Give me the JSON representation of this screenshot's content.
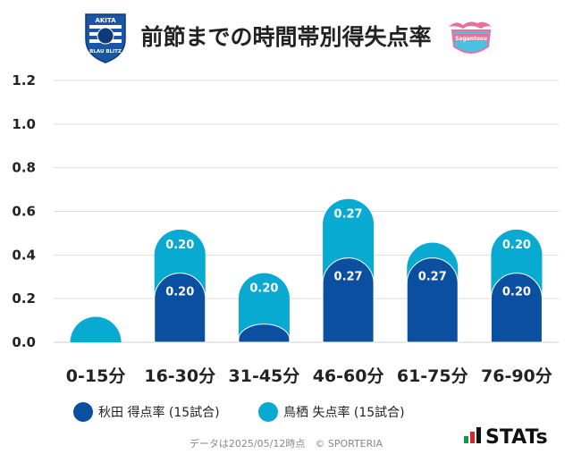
{
  "chart_data": {
    "type": "bar",
    "title": "前節までの時間帯別得失点率",
    "categories": [
      "0-15分",
      "16-30分",
      "31-45分",
      "46-60分",
      "61-75分",
      "76-90分"
    ],
    "series": [
      {
        "name": "秋田 得点率 (15試合)",
        "color": "#0b4fa0",
        "values": [
          0.0,
          0.2,
          0.0,
          0.27,
          0.27,
          0.2
        ],
        "labels": [
          "",
          "0.20",
          "",
          "0.27",
          "0.27",
          "0.20"
        ]
      },
      {
        "name": "鳥栖 失点率 (15試合)",
        "color": "#08aad1",
        "values": [
          0.0,
          0.2,
          0.2,
          0.27,
          0.07,
          0.2
        ],
        "labels": [
          "",
          "0.20",
          "0.20",
          "0.27",
          "",
          "0.20"
        ]
      }
    ],
    "stacked": true,
    "ylim": [
      0,
      1.2
    ],
    "yticks": [
      "1.2",
      "1.0",
      "0.8",
      "0.6",
      "0.4",
      "0.2",
      "0.0"
    ],
    "grid": true,
    "legend_position": "bottom-left"
  },
  "logos": {
    "left": {
      "name": "akita-blaublitz-emblem-icon",
      "text_top": "AKITA",
      "text_bottom": "BLAU BLITZ"
    },
    "right": {
      "name": "sagan-tosu-emblem-icon",
      "text": "Sagantosu"
    }
  },
  "footer": "データは2025/05/12時点　© SPORTERIA",
  "brand": "STATs",
  "colors": {
    "akita": "#0b4fa0",
    "tosu": "#08aad1",
    "tosu_pink": "#e8719e",
    "grid": "#dddddd"
  }
}
